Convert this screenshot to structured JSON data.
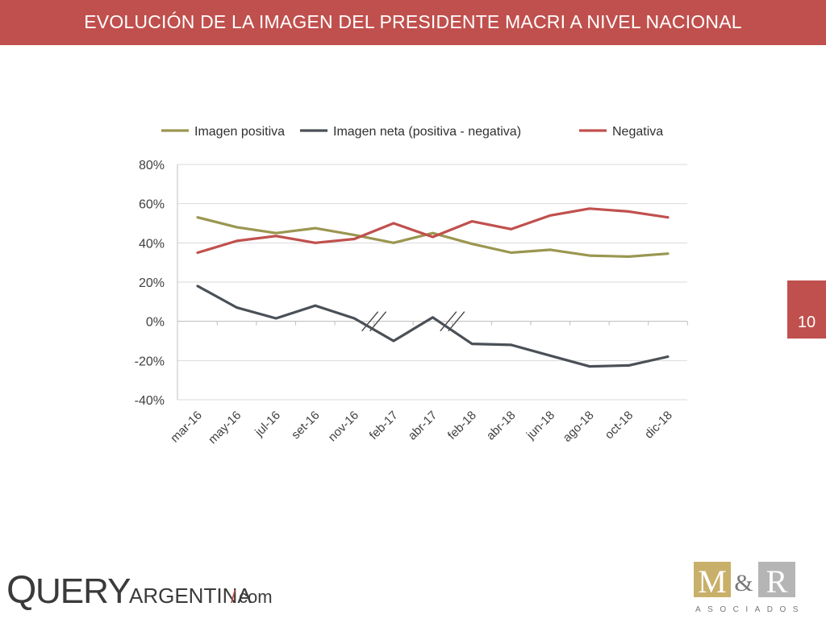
{
  "header": {
    "title": "EVOLUCIÓN DE LA IMAGEN DEL PRESIDENTE MACRI A NIVEL NACIONAL"
  },
  "page_number": "10",
  "colors": {
    "accent": "#c0504d",
    "positiva": "#9b9650",
    "neta": "#4a5056",
    "negativa": "#c0504d"
  },
  "chart_data": {
    "type": "line",
    "categories": [
      "mar-16",
      "may-16",
      "jul-16",
      "set-16",
      "nov-16",
      "feb-17",
      "abr-17",
      "feb-18",
      "abr-18",
      "jun-18",
      "ago-18",
      "oct-18",
      "dic-18"
    ],
    "series": [
      {
        "name": "Imagen positiva",
        "values": [
          53,
          48,
          45,
          47.5,
          44,
          40,
          45,
          39.5,
          35,
          36.5,
          33.5,
          33,
          34.5
        ]
      },
      {
        "name": "Imagen neta (positiva - negativa)",
        "values": [
          18,
          7,
          1.5,
          8,
          1.5,
          -10,
          2,
          -11.5,
          -12,
          -17.5,
          -23,
          -22.5,
          -18
        ]
      },
      {
        "name": "Negativa",
        "values": [
          35,
          41,
          43.5,
          40,
          42,
          50,
          43,
          51,
          47,
          54,
          57.5,
          56,
          53
        ]
      }
    ],
    "ylim": [
      -40,
      80
    ],
    "yticks": [
      -40,
      -20,
      0,
      20,
      40,
      60,
      80
    ],
    "ytick_labels": [
      "-40%",
      "-20%",
      "0%",
      "20%",
      "40%",
      "60%",
      "80%"
    ],
    "grid": true,
    "legend_position": "top",
    "axis_breaks_after": [
      "nov-16",
      "abr-17"
    ]
  },
  "logos": {
    "query": {
      "q": "Q",
      "uery": "UERY",
      "argentina": "ARGENTINA",
      "slash": "/",
      "com": "com"
    },
    "mr": {
      "m": "M",
      "amp": "&",
      "r": "R",
      "asociados": "ASOCIADOS"
    }
  }
}
